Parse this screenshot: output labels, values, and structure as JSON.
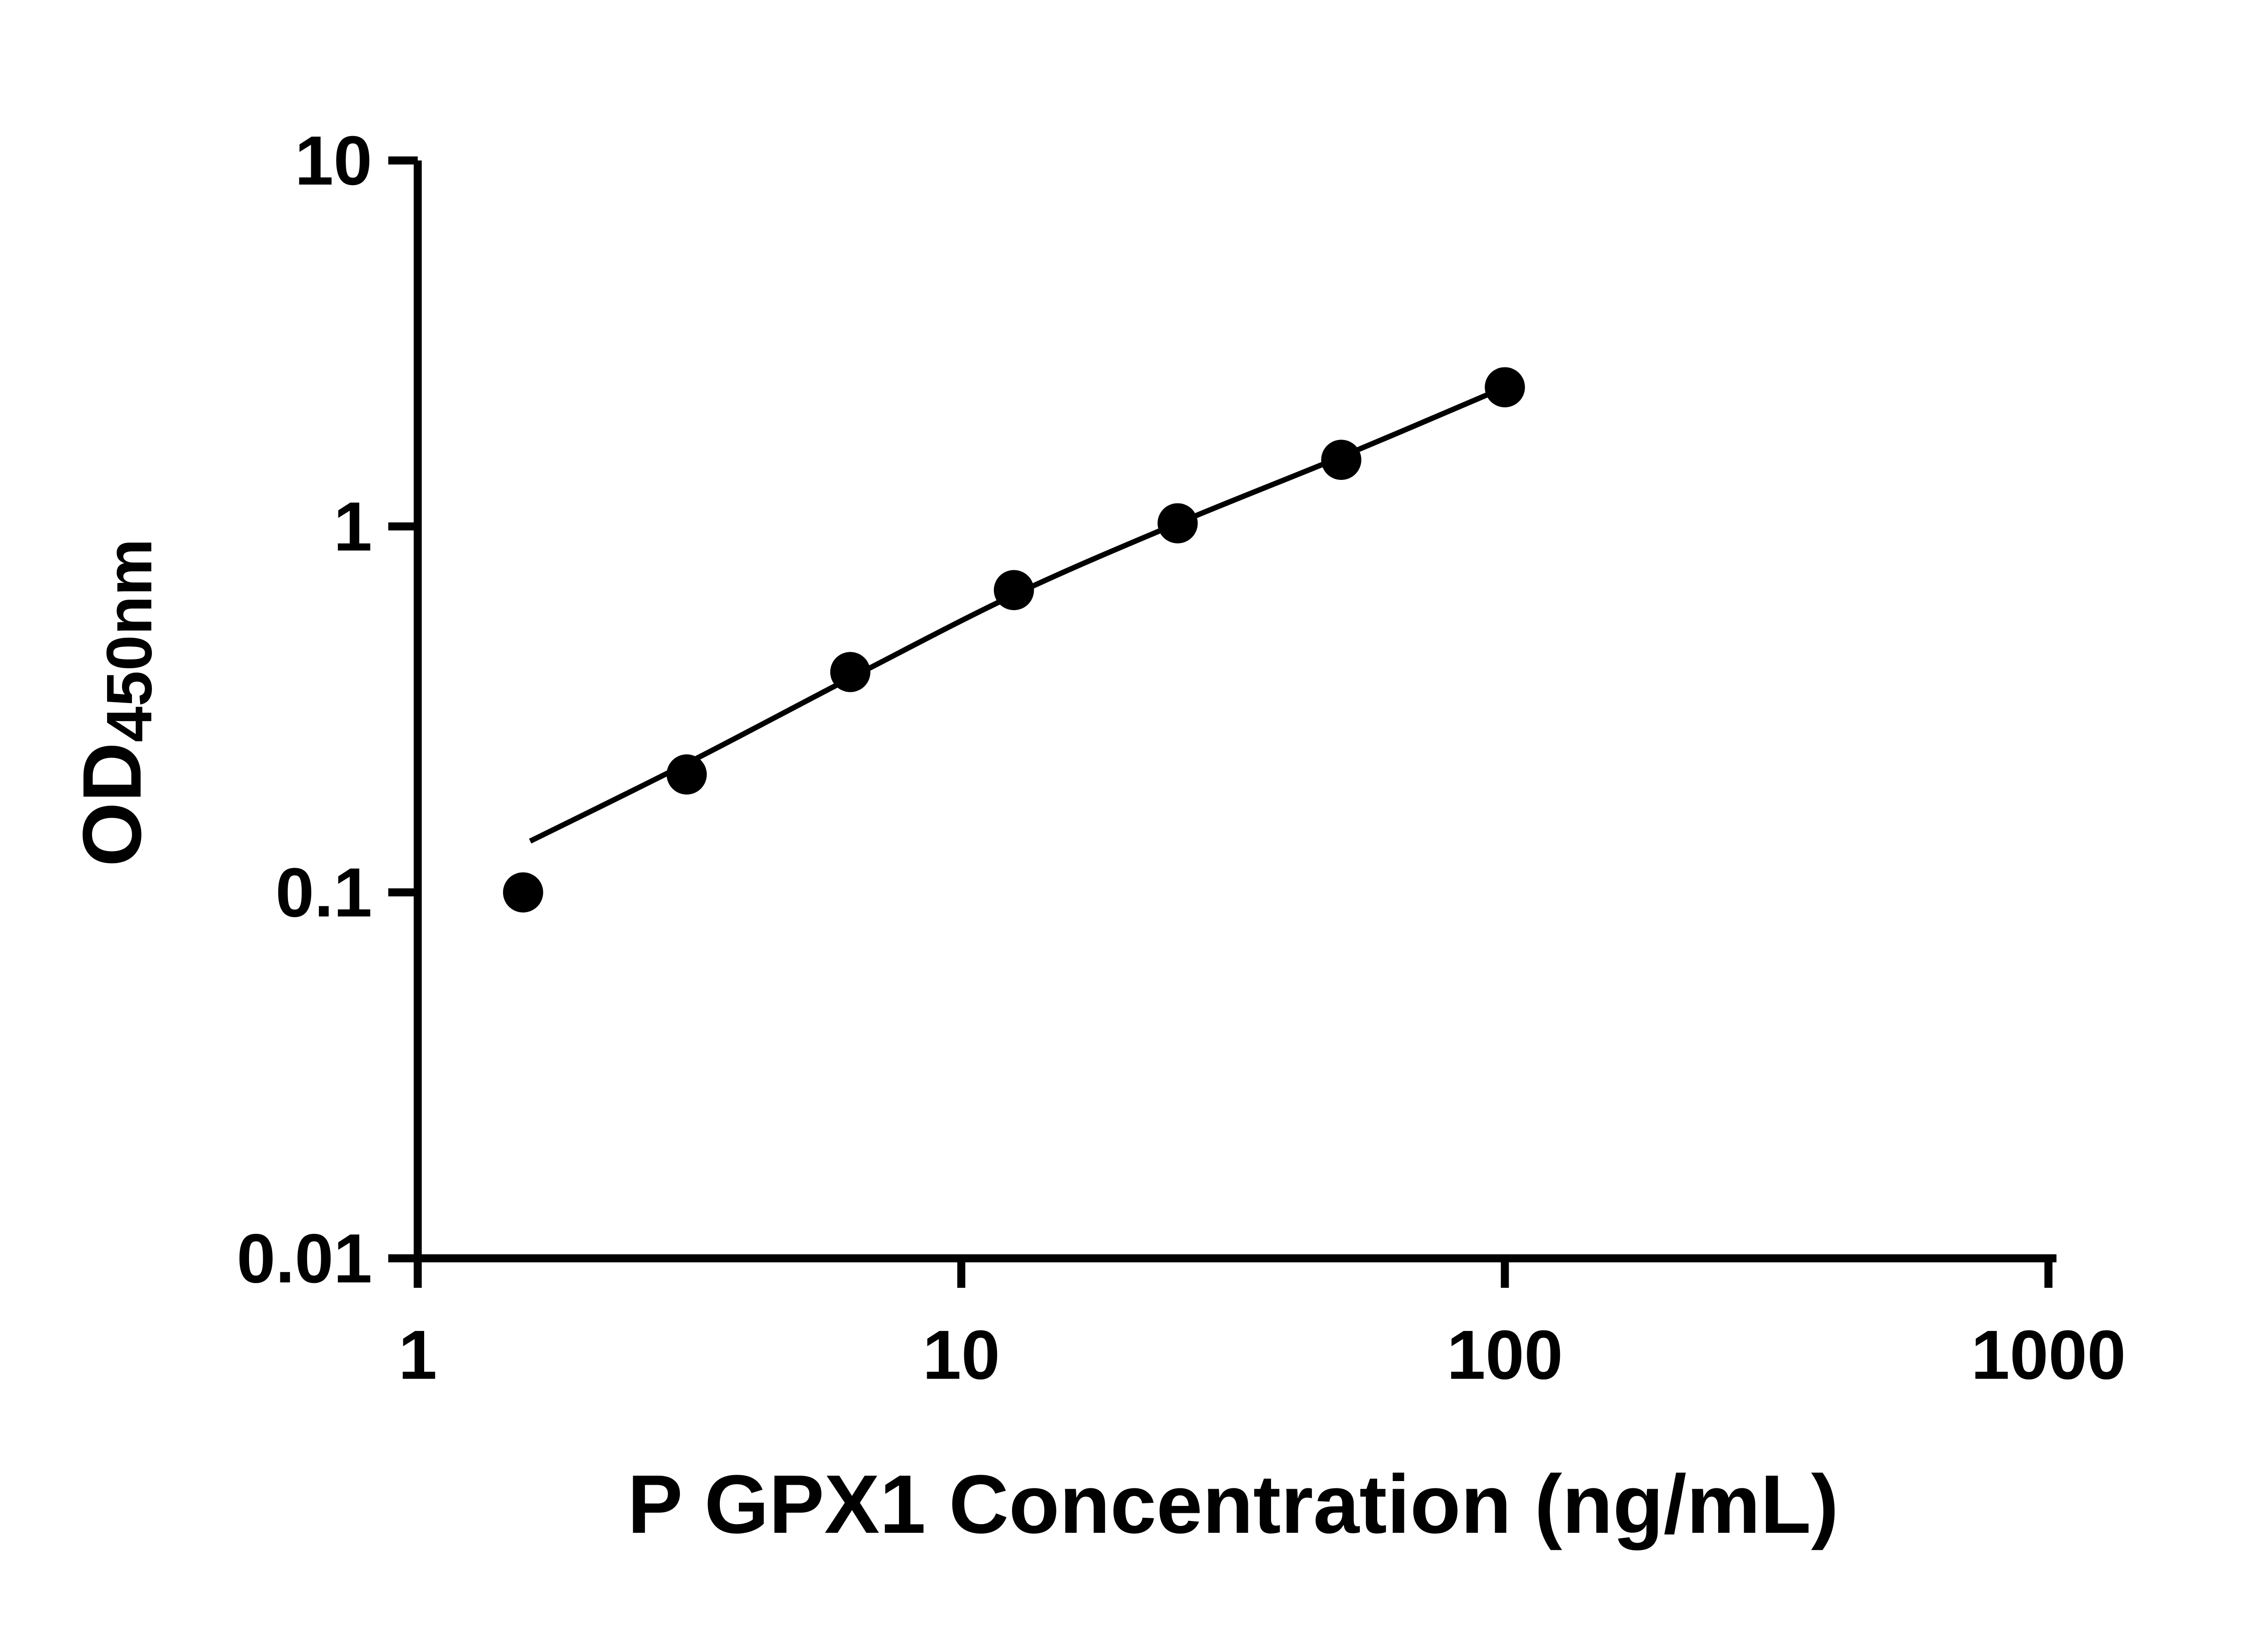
{
  "page": {
    "background": "#ffffff"
  },
  "chart_data": {
    "type": "scatter",
    "title": "",
    "xlabel": "P GPX1 Concentration (ng/mL)",
    "ylabel": "OD450nm",
    "ylabel_main": "OD",
    "ylabel_sub": "450nm",
    "x_scale": "log",
    "y_scale": "log",
    "xlim": [
      1,
      1000
    ],
    "ylim": [
      0.01,
      10
    ],
    "grid": false,
    "legend": "none",
    "x_ticks": [
      {
        "value": 1,
        "label": "1"
      },
      {
        "value": 10,
        "label": "10"
      },
      {
        "value": 100,
        "label": "100"
      },
      {
        "value": 1000,
        "label": "1000"
      }
    ],
    "y_ticks": [
      {
        "value": 0.01,
        "label": "0.01"
      },
      {
        "value": 0.1,
        "label": "0.1"
      },
      {
        "value": 1,
        "label": "1"
      },
      {
        "value": 10,
        "label": "10"
      }
    ],
    "series": [
      {
        "name": "standard-curve-points",
        "marker": "circle",
        "points": [
          {
            "x": 1.5625,
            "y": 0.1
          },
          {
            "x": 3.125,
            "y": 0.21
          },
          {
            "x": 6.25,
            "y": 0.4
          },
          {
            "x": 12.5,
            "y": 0.67
          },
          {
            "x": 25,
            "y": 1.02
          },
          {
            "x": 50,
            "y": 1.52
          },
          {
            "x": 100,
            "y": 2.4
          }
        ]
      }
    ],
    "trend_line": [
      {
        "x": 1.61,
        "y": 0.138
      },
      {
        "x": 3.125,
        "y": 0.225
      },
      {
        "x": 6.25,
        "y": 0.385
      },
      {
        "x": 12.5,
        "y": 0.65
      },
      {
        "x": 25,
        "y": 1.02
      },
      {
        "x": 50,
        "y": 1.55
      },
      {
        "x": 100,
        "y": 2.4
      }
    ],
    "colors": {
      "marker": "#000000",
      "line": "#000000",
      "axis": "#000000",
      "text": "#000000"
    }
  }
}
